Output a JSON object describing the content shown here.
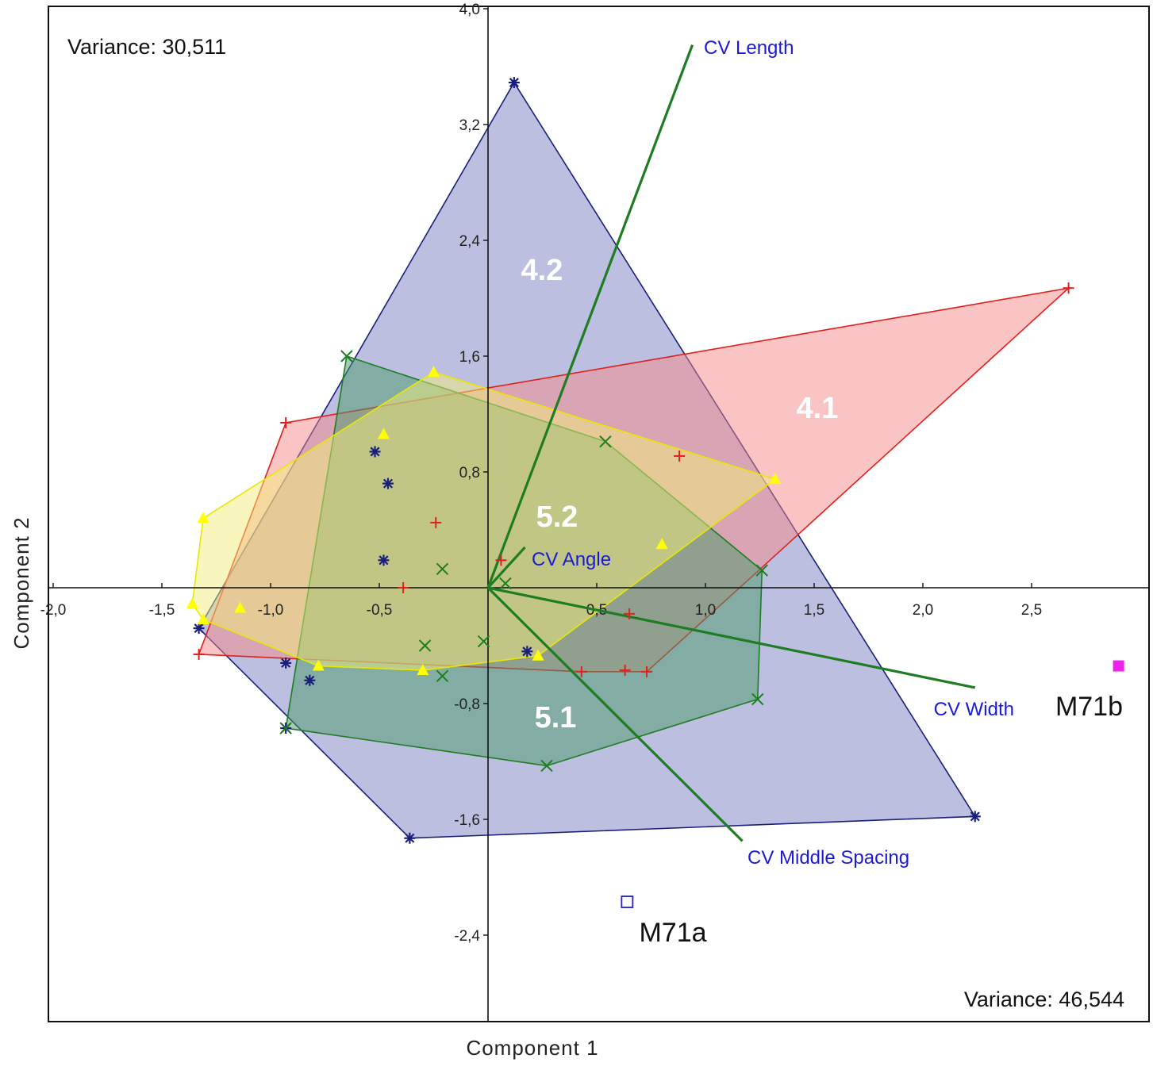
{
  "chart_data": {
    "type": "scatter",
    "xlabel": "Component 1",
    "ylabel": "Component 2",
    "xlim": [
      -2.05,
      3.0
    ],
    "ylim": [
      -2.95,
      4.05
    ],
    "x_ticks": [
      -2.0,
      -1.5,
      -1.0,
      -0.5,
      0.5,
      1.0,
      1.5,
      2.0,
      2.5
    ],
    "x_tick_labels": [
      "-2,0",
      "-1,5",
      "-1,0",
      "-0,5",
      "0,5",
      "1,0",
      "1,5",
      "2,0",
      "2,5"
    ],
    "y_ticks": [
      4.0,
      3.2,
      2.4,
      1.6,
      0.8,
      -0.8,
      -1.6,
      -2.4
    ],
    "y_tick_labels": [
      "4,0",
      "3,2",
      "2,4",
      "1,6",
      "0,8",
      "-0,8",
      "-1,6",
      "-2,4"
    ],
    "annotations": {
      "variance_y": "Variance: 30,511",
      "variance_x": "Variance: 46,544"
    },
    "groups": [
      {
        "name": "4.2",
        "marker": "asterisk",
        "color": "#1a1f7a",
        "fill": "#7a7fc0",
        "points": [
          [
            0.12,
            3.49
          ],
          [
            -0.52,
            0.94
          ],
          [
            -0.46,
            0.72
          ],
          [
            -0.48,
            0.19
          ],
          [
            -1.33,
            -0.28
          ],
          [
            -0.93,
            -0.52
          ],
          [
            -0.82,
            -0.64
          ],
          [
            -0.93,
            -0.97
          ],
          [
            -0.36,
            -1.73
          ],
          [
            0.18,
            -0.44
          ],
          [
            2.24,
            -1.58
          ]
        ],
        "hull": [
          [
            0.12,
            3.49
          ],
          [
            2.24,
            -1.58
          ],
          [
            -0.36,
            -1.73
          ],
          [
            -1.33,
            -0.28
          ]
        ]
      },
      {
        "name": "4.1",
        "marker": "plus",
        "color": "#e0201e",
        "fill": "#f58a8a",
        "points": [
          [
            2.67,
            2.07
          ],
          [
            -0.93,
            1.14
          ],
          [
            0.88,
            0.91
          ],
          [
            -0.24,
            0.45
          ],
          [
            0.06,
            0.19
          ],
          [
            -0.39,
            0.0
          ],
          [
            0.65,
            -0.18
          ],
          [
            0.43,
            -0.58
          ],
          [
            0.63,
            -0.57
          ],
          [
            0.73,
            -0.58
          ],
          [
            -1.33,
            -0.46
          ]
        ],
        "hull": [
          [
            2.67,
            2.07
          ],
          [
            1.26,
            0.14
          ],
          [
            0.73,
            -0.58
          ],
          [
            0.43,
            -0.58
          ],
          [
            -1.33,
            -0.46
          ],
          [
            -0.93,
            1.14
          ]
        ]
      },
      {
        "name": "5.1",
        "marker": "cross",
        "color": "#1e7d22",
        "fill": "#4a9a6a",
        "points": [
          [
            -0.65,
            1.6
          ],
          [
            0.54,
            1.01
          ],
          [
            -0.21,
            0.13
          ],
          [
            0.08,
            0.03
          ],
          [
            -0.29,
            -0.4
          ],
          [
            -0.02,
            -0.37
          ],
          [
            -0.21,
            -0.61
          ],
          [
            1.26,
            0.12
          ],
          [
            1.24,
            -0.77
          ],
          [
            -0.93,
            -0.97
          ],
          [
            0.27,
            -1.23
          ]
        ],
        "hull": [
          [
            -0.65,
            1.6
          ],
          [
            0.54,
            1.01
          ],
          [
            1.26,
            0.12
          ],
          [
            1.24,
            -0.77
          ],
          [
            0.27,
            -1.23
          ],
          [
            -0.93,
            -0.97
          ]
        ]
      },
      {
        "name": "5.2",
        "marker": "triangle",
        "color": "#ffff00",
        "fill": "#f2ee7a",
        "points": [
          [
            -0.25,
            1.49
          ],
          [
            -0.48,
            1.06
          ],
          [
            1.32,
            0.75
          ],
          [
            0.8,
            0.3
          ],
          [
            -1.31,
            0.48
          ],
          [
            -1.36,
            -0.11
          ],
          [
            -1.14,
            -0.14
          ],
          [
            -1.31,
            -0.22
          ],
          [
            -0.78,
            -0.54
          ],
          [
            -0.3,
            -0.57
          ],
          [
            0.23,
            -0.47
          ]
        ],
        "hull": [
          [
            -0.25,
            1.49
          ],
          [
            1.32,
            0.75
          ],
          [
            0.23,
            -0.47
          ],
          [
            -0.3,
            -0.57
          ],
          [
            -0.78,
            -0.54
          ],
          [
            -1.31,
            -0.22
          ],
          [
            -1.36,
            -0.11
          ],
          [
            -1.31,
            0.48
          ]
        ]
      }
    ],
    "vectors": [
      {
        "name": "CV Length",
        "x": 0.94,
        "y": 3.75
      },
      {
        "name": "CV Width",
        "x": 2.24,
        "y": -0.69
      },
      {
        "name": "CV Middle Spacing",
        "x": 1.17,
        "y": -1.75
      },
      {
        "name": "CV Angle",
        "x": 0.17,
        "y": 0.28
      }
    ],
    "outliers": [
      {
        "name": "M71b",
        "x": 2.9,
        "y": -0.54,
        "marker": "filled-square",
        "color": "#ee22ee"
      },
      {
        "name": "M71a",
        "x": 0.64,
        "y": -2.17,
        "marker": "open-square",
        "color": "#1f1fe0"
      }
    ]
  }
}
